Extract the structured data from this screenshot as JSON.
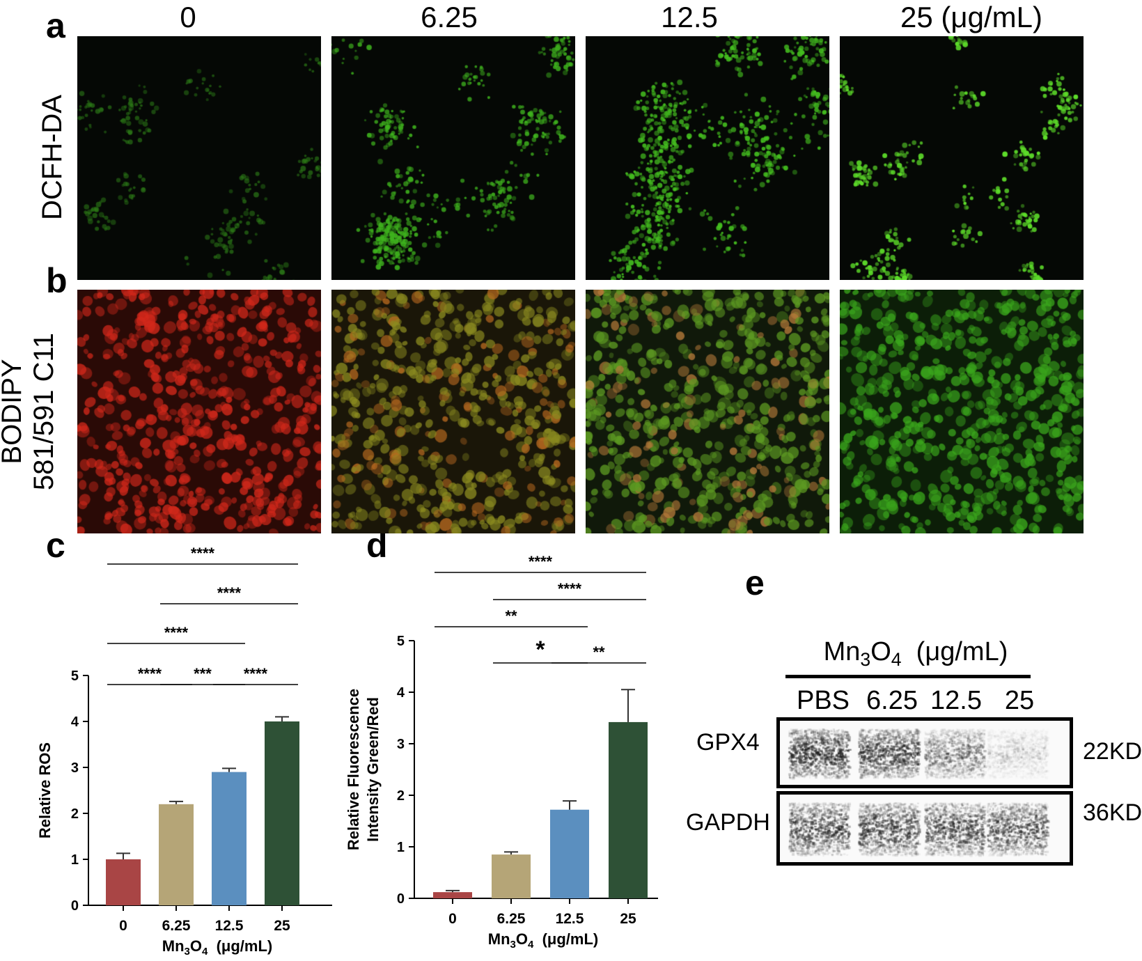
{
  "panel_letters": [
    "a",
    "b",
    "c",
    "d",
    "e"
  ],
  "column_labels": [
    "0",
    "6.25",
    "12.5",
    "25 (μg/mL)"
  ],
  "row_labels": {
    "a": [
      "DCFH-DA"
    ],
    "b": [
      "BODIPY",
      "581/591 C11"
    ]
  },
  "micrographs": {
    "a": [
      {
        "label": "0",
        "stain": "green-sparse-dim",
        "color": "#2c7a17"
      },
      {
        "label": "6.25",
        "stain": "green-clusters",
        "color": "#3fb31e"
      },
      {
        "label": "12.5",
        "stain": "green-clusters-dense",
        "color": "#45c020"
      },
      {
        "label": "25",
        "stain": "green-clusters-bright",
        "color": "#5ddc2a"
      }
    ],
    "b": [
      {
        "label": "0",
        "stain": "red-cells",
        "color": "#d2281b"
      },
      {
        "label": "6.25",
        "stain": "orange-green-cells",
        "color": "#8a8a20"
      },
      {
        "label": "12.5",
        "stain": "green-orange-cells",
        "color": "#5d9a22"
      },
      {
        "label": "25",
        "stain": "green-cells",
        "color": "#3aa51c"
      }
    ]
  },
  "chart_data": [
    {
      "panel": "c",
      "type": "bar",
      "categories": [
        "0",
        "6.25",
        "12.5",
        "25"
      ],
      "values": [
        1.0,
        2.2,
        2.9,
        4.0
      ],
      "errors": [
        0.13,
        0.06,
        0.08,
        0.1
      ],
      "colors": [
        "#a94545",
        "#b5a577",
        "#5b8fbf",
        "#2e5136"
      ],
      "ylabel": "Relative ROS",
      "xlabel_prefix": "Mn",
      "xlabel_sub1": "3",
      "xlabel_mid": "O",
      "xlabel_sub2": "4",
      "xlabel_suffix": "  (μg/mL)",
      "ylim": [
        0,
        5
      ],
      "yticks": [
        "0",
        "1",
        "2",
        "3",
        "4",
        "5"
      ],
      "significance": [
        {
          "from": 0,
          "to": 3,
          "label": "****"
        },
        {
          "from": 1,
          "to": 3,
          "label": "****"
        },
        {
          "from": 0,
          "to": 2,
          "label": "****"
        },
        {
          "from": 0,
          "to": 1,
          "label": "****"
        },
        {
          "from": 1,
          "to": 2,
          "label": "***"
        },
        {
          "from": 2,
          "to": 3,
          "label": "****"
        }
      ]
    },
    {
      "panel": "d",
      "type": "bar",
      "categories": [
        "0",
        "6.25",
        "12.5",
        "25"
      ],
      "values": [
        0.12,
        0.85,
        1.72,
        3.42
      ],
      "errors": [
        0.03,
        0.05,
        0.17,
        0.63
      ],
      "colors": [
        "#a94545",
        "#b5a577",
        "#5b8fbf",
        "#2e5136"
      ],
      "ylabel_line1": "Relative Fluorescence",
      "ylabel_line2": "Intensity Green/Red",
      "xlabel_prefix": "Mn",
      "xlabel_sub1": "3",
      "xlabel_mid": "O",
      "xlabel_sub2": "4",
      "xlabel_suffix": "  (μg/mL)",
      "ylim": [
        0,
        5
      ],
      "yticks": [
        "0",
        "1",
        "2",
        "3",
        "4",
        "5"
      ],
      "significance": [
        {
          "from": 0,
          "to": 3,
          "label": "****"
        },
        {
          "from": 1,
          "to": 3,
          "label": "****"
        },
        {
          "from": 0,
          "to": 2,
          "label": "**"
        },
        {
          "from": 1,
          "to": 2,
          "label": "*"
        },
        {
          "from": 2,
          "to": 3,
          "label": "**"
        }
      ]
    }
  ],
  "western_blot": {
    "header_prefix": "Mn",
    "header_sub1": "3",
    "header_mid": "O",
    "header_sub2": "4",
    "header_suffix": "  (μg/mL)",
    "lanes": [
      "PBS",
      "6.25",
      "12.5",
      "25"
    ],
    "rows": [
      {
        "protein": "GPX4",
        "size": "22KD",
        "intensities": [
          0.95,
          0.85,
          0.45,
          0.12
        ]
      },
      {
        "protein": "GAPDH",
        "size": "36KD",
        "intensities": [
          0.8,
          0.8,
          0.78,
          0.76
        ]
      }
    ]
  }
}
